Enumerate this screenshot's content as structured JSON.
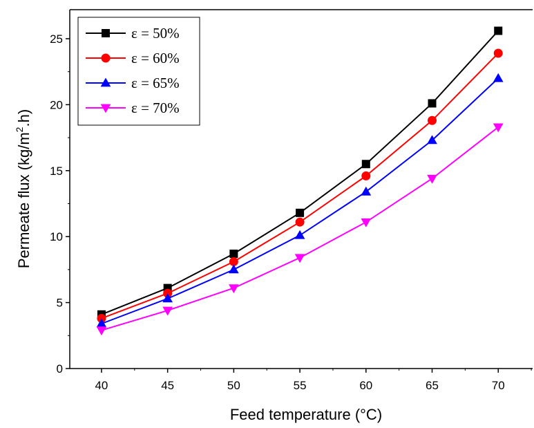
{
  "chart_data": {
    "type": "line",
    "title": "",
    "xlabel": "Feed temperature (°C)",
    "ylabel_parts": [
      "Permeate flux (kg/m",
      "2",
      ".h)"
    ],
    "x": [
      40,
      45,
      50,
      55,
      60,
      65,
      70
    ],
    "x_ticks": [
      40,
      45,
      50,
      55,
      60,
      65,
      70
    ],
    "xlim": [
      37.6,
      72.6
    ],
    "y_ticks": [
      0,
      5,
      10,
      15,
      20,
      25
    ],
    "ylim": [
      0,
      27.2
    ],
    "grid": false,
    "legend_placement": "top-left",
    "series": [
      {
        "name": "ε = 50%",
        "marker": "square",
        "color": "#000000",
        "values": [
          4.1,
          6.1,
          8.7,
          11.8,
          15.5,
          20.1,
          25.6
        ]
      },
      {
        "name": "ε = 60%",
        "marker": "circle",
        "color": "#ff0000",
        "values": [
          3.8,
          5.7,
          8.1,
          11.1,
          14.6,
          18.8,
          23.9
        ]
      },
      {
        "name": "ε = 65%",
        "marker": "triangle-up",
        "color": "#0000ff",
        "values": [
          3.4,
          5.3,
          7.5,
          10.1,
          13.4,
          17.3,
          22.0
        ]
      },
      {
        "name": "ε = 70%",
        "marker": "triangle-down",
        "color": "#ff00ff",
        "values": [
          2.9,
          4.4,
          6.1,
          8.4,
          11.1,
          14.4,
          18.3
        ]
      }
    ]
  }
}
